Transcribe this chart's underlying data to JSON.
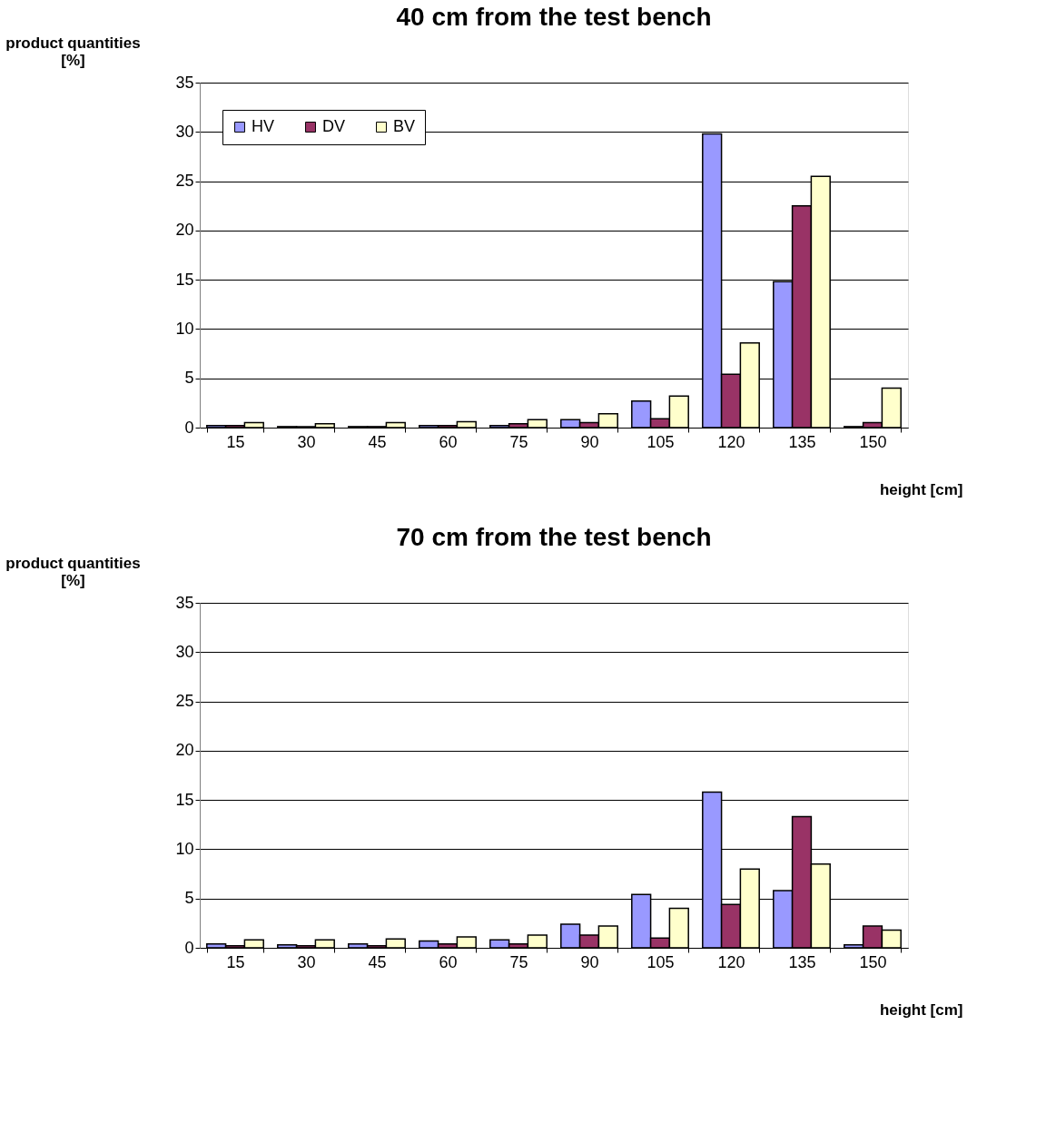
{
  "chart_data": [
    {
      "type": "bar",
      "title": "40 cm from the test bench",
      "xlabel": "height [cm]",
      "ylabel": "product quantities [%]",
      "categories": [
        "15",
        "30",
        "45",
        "60",
        "75",
        "90",
        "105",
        "120",
        "135",
        "150"
      ],
      "series": [
        {
          "name": "HV",
          "color": "#9999ff",
          "values": [
            0.2,
            0.1,
            0.1,
            0.2,
            0.2,
            0.8,
            2.7,
            29.8,
            14.8,
            0.1
          ]
        },
        {
          "name": "DV",
          "color": "#993366",
          "values": [
            0.2,
            0.1,
            0.1,
            0.2,
            0.4,
            0.5,
            0.9,
            5.4,
            22.5,
            0.5
          ]
        },
        {
          "name": "BV",
          "color": "#ffffcc",
          "values": [
            0.5,
            0.4,
            0.5,
            0.6,
            0.8,
            1.4,
            3.2,
            8.6,
            25.5,
            4.0
          ]
        }
      ],
      "ylim": [
        0,
        35
      ],
      "yticks": [
        0,
        5,
        10,
        15,
        20,
        25,
        30,
        35
      ],
      "grid": "y",
      "legend": "top left"
    },
    {
      "type": "bar",
      "title": "70 cm from the test bench",
      "xlabel": "height [cm]",
      "ylabel": "product quantities [%]",
      "categories": [
        "15",
        "30",
        "45",
        "60",
        "75",
        "90",
        "105",
        "120",
        "135",
        "150"
      ],
      "series": [
        {
          "name": "HV",
          "color": "#9999ff",
          "values": [
            0.4,
            0.3,
            0.4,
            0.7,
            0.8,
            2.4,
            5.4,
            15.8,
            5.8,
            0.3
          ]
        },
        {
          "name": "DV",
          "color": "#993366",
          "values": [
            0.2,
            0.2,
            0.2,
            0.4,
            0.4,
            1.3,
            1.0,
            4.4,
            13.3,
            2.2
          ]
        },
        {
          "name": "BV",
          "color": "#ffffcc",
          "values": [
            0.8,
            0.8,
            0.9,
            1.1,
            1.3,
            2.2,
            4.0,
            8.0,
            8.5,
            1.8
          ]
        }
      ],
      "ylim": [
        0,
        35
      ],
      "yticks": [
        0,
        5,
        10,
        15,
        20,
        25,
        30,
        35
      ],
      "grid": "y",
      "legend": "top left"
    }
  ]
}
